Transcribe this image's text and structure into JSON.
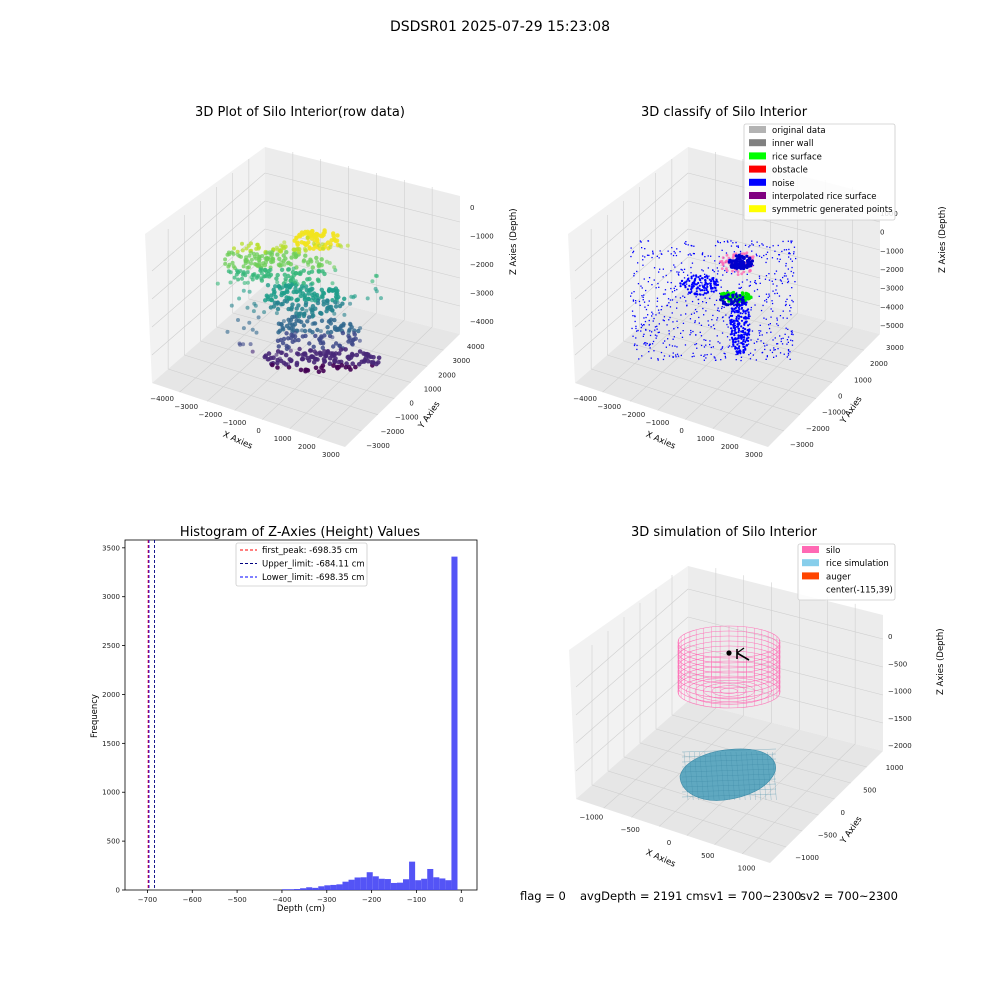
{
  "figure": {
    "suptitle": "DSDSR01 2025-07-29 15:23:08"
  },
  "panels": {
    "raw": {
      "title": "3D Plot of Silo Interior(row data)",
      "xlabel": "X Axies",
      "ylabel": "Y Axies",
      "zlabel": "Z Axies (Depth)",
      "xticks": [
        "−4000",
        "−3000",
        "−2000",
        "−1000",
        "0",
        "1000",
        "2000",
        "3000"
      ],
      "yticks": [
        "−3000",
        "−2000",
        "−1000",
        "0",
        "1000",
        "2000",
        "3000",
        "4000"
      ],
      "zticks": [
        "−4000",
        "−3000",
        "−2000",
        "−1000",
        "0"
      ]
    },
    "classify": {
      "title": "3D classify of Silo Interior",
      "xlabel": "X Axies",
      "ylabel": "Y Axies",
      "zlabel": "Z Axies (Depth)",
      "xticks": [
        "−4000",
        "−3000",
        "−2000",
        "−1000",
        "0",
        "1000",
        "2000",
        "3000"
      ],
      "yticks": [
        "−3000",
        "−2000",
        "−1000",
        "0",
        "1000",
        "2000",
        "3000"
      ],
      "zticks": [
        "−5000",
        "−4000",
        "−3000",
        "−2000",
        "−1000",
        "0",
        "1000"
      ],
      "legend": [
        {
          "label": "original data",
          "color": "#b3b3b3"
        },
        {
          "label": "inner wall",
          "color": "#808080"
        },
        {
          "label": "rice surface",
          "color": "#00ff00"
        },
        {
          "label": "obstacle",
          "color": "#ff0000"
        },
        {
          "label": "noise",
          "color": "#0000ff"
        },
        {
          "label": "interpolated rice surface",
          "color": "#800080"
        },
        {
          "label": "symmetric generated points",
          "color": "#ffff00"
        }
      ]
    },
    "simulation": {
      "title": "3D simulation of Silo Interior",
      "xlabel": "X Axies",
      "ylabel": "Y Axies",
      "zlabel": "Z Axies (Depth)",
      "xticks": [
        "−1000",
        "−500",
        "0",
        "500",
        "1000"
      ],
      "yticks": [
        "−1000",
        "−500",
        "0",
        "500",
        "1000"
      ],
      "zticks": [
        "−2000",
        "−1500",
        "−1000",
        "−500",
        "0"
      ],
      "legend": [
        {
          "label": "silo",
          "color": "#ff69b4"
        },
        {
          "label": "rice simulation",
          "color": "#87ceeb"
        },
        {
          "label": "auger",
          "color": "#ff4500"
        },
        {
          "label": "center(-115,39)",
          "color": ""
        }
      ],
      "colors": {
        "silo": "#ff69b4",
        "rice": "#5fa8c0"
      }
    }
  },
  "chart_data": [
    {
      "type": "histogram",
      "title": "Histogram of Z-Axies (Height) Values",
      "xlabel": "Depth (cm)",
      "ylabel": "Frequency",
      "xlim": [
        -750,
        35
      ],
      "ylim": [
        0,
        3580
      ],
      "xticks": [
        -700,
        -600,
        -500,
        -400,
        -300,
        -200,
        -100,
        0
      ],
      "yticks": [
        0,
        500,
        1000,
        1500,
        2000,
        2500,
        3000,
        3500
      ],
      "bar_color": "#4b4bf5",
      "bin_width": 13.5,
      "bins": [
        {
          "x0": -400,
          "count": 8
        },
        {
          "x0": -386.5,
          "count": 8
        },
        {
          "x0": -373,
          "count": 10
        },
        {
          "x0": -359.5,
          "count": 18
        },
        {
          "x0": -346,
          "count": 28
        },
        {
          "x0": -332.5,
          "count": 22
        },
        {
          "x0": -319,
          "count": 38
        },
        {
          "x0": -305.5,
          "count": 48
        },
        {
          "x0": -292,
          "count": 52
        },
        {
          "x0": -278.5,
          "count": 58
        },
        {
          "x0": -265,
          "count": 85
        },
        {
          "x0": -251.5,
          "count": 105
        },
        {
          "x0": -238,
          "count": 128
        },
        {
          "x0": -224.5,
          "count": 130
        },
        {
          "x0": -211,
          "count": 182
        },
        {
          "x0": -197.5,
          "count": 140
        },
        {
          "x0": -184,
          "count": 115
        },
        {
          "x0": -170.5,
          "count": 112
        },
        {
          "x0": -157,
          "count": 72
        },
        {
          "x0": -143.5,
          "count": 75
        },
        {
          "x0": -130,
          "count": 110
        },
        {
          "x0": -116.5,
          "count": 290
        },
        {
          "x0": -103,
          "count": 100
        },
        {
          "x0": -89.5,
          "count": 115
        },
        {
          "x0": -76,
          "count": 215
        },
        {
          "x0": -62.5,
          "count": 130
        },
        {
          "x0": -49,
          "count": 118
        },
        {
          "x0": -35.5,
          "count": 100
        },
        {
          "x0": -22,
          "count": 3410
        }
      ],
      "vlines": [
        {
          "label": "first_peak: -698.35 cm",
          "x": -698.35,
          "color": "#ff0000"
        },
        {
          "label": "Upper_limit: -684.11 cm",
          "x": -684.11,
          "color": "#000080"
        },
        {
          "label": "Lower_limit: -698.35 cm",
          "x": -698.35,
          "color": "#0000ff"
        }
      ]
    }
  ],
  "status": {
    "flag": "flag = 0",
    "avg": "avgDepth = 2191 cmsv1 = 700~2300",
    "sv2": "sv2 = 700~2300"
  }
}
